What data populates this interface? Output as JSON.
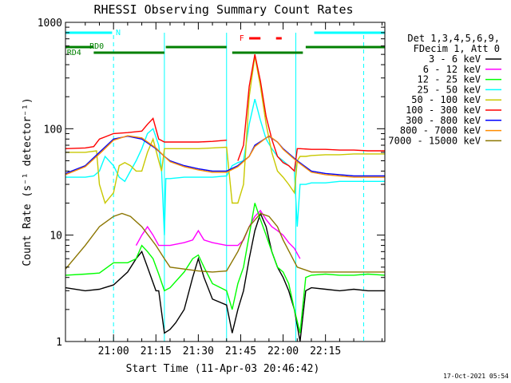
{
  "chart_data": {
    "type": "line",
    "title": "RHESSI Observing Summary Count Rates",
    "xlabel": "Start Time (11-Apr-03 20:46:42)",
    "ylabel": "Count Rate (s⁻¹ detector⁻¹)",
    "yscale": "log",
    "ylim": [
      1,
      1000
    ],
    "xlim_minutes": [
      -17,
      96
    ],
    "x_ticks": [
      {
        "label": "21:00",
        "min": 0
      },
      {
        "label": "21:15",
        "min": 15
      },
      {
        "label": "21:30",
        "min": 30
      },
      {
        "label": "21:45",
        "min": 45
      },
      {
        "label": "22:00",
        "min": 60
      },
      {
        "label": "22:15",
        "min": 75
      }
    ],
    "y_ticks": [
      {
        "label": "1",
        "value": 1
      },
      {
        "label": "10",
        "value": 10
      },
      {
        "label": "100",
        "value": 100
      },
      {
        "label": "1000",
        "value": 1000
      }
    ],
    "legend_header": [
      "Det 1,3,4,5,6,9,",
      "FDecim 1, Att 0"
    ],
    "series": [
      {
        "name": "3 - 6 keV",
        "color": "#000000",
        "points": [
          [
            -17,
            3.2
          ],
          [
            -10,
            3.0
          ],
          [
            -5,
            3.1
          ],
          [
            0,
            3.4
          ],
          [
            5,
            4.5
          ],
          [
            8,
            6
          ],
          [
            10,
            7
          ],
          [
            12,
            5
          ],
          [
            15,
            3
          ],
          [
            16,
            3
          ],
          [
            18,
            1.2
          ],
          [
            20,
            1.3
          ],
          [
            22,
            1.5
          ],
          [
            25,
            2
          ],
          [
            28,
            4
          ],
          [
            30,
            6
          ],
          [
            32,
            4
          ],
          [
            35,
            2.5
          ],
          [
            40,
            2.2
          ],
          [
            42,
            1.2
          ],
          [
            44,
            2
          ],
          [
            46,
            3
          ],
          [
            48,
            6
          ],
          [
            50,
            11
          ],
          [
            52,
            16
          ],
          [
            54,
            12
          ],
          [
            56,
            7
          ],
          [
            58,
            5
          ],
          [
            60,
            4
          ],
          [
            62,
            3
          ],
          [
            64,
            2
          ],
          [
            66,
            1
          ],
          [
            68,
            3
          ],
          [
            70,
            3.2
          ],
          [
            75,
            3.1
          ],
          [
            80,
            3.0
          ],
          [
            85,
            3.1
          ],
          [
            90,
            3.0
          ],
          [
            96,
            3.0
          ]
        ]
      },
      {
        "name": "6 - 12 keV",
        "color": "#ff00ff",
        "points": [
          [
            -17,
            null
          ],
          [
            8,
            8
          ],
          [
            10,
            10
          ],
          [
            12,
            12
          ],
          [
            14,
            10
          ],
          [
            16,
            8
          ],
          [
            20,
            8
          ],
          [
            25,
            8.5
          ],
          [
            28,
            9
          ],
          [
            30,
            11
          ],
          [
            32,
            9
          ],
          [
            35,
            8.5
          ],
          [
            40,
            8
          ],
          [
            44,
            8
          ],
          [
            46,
            9
          ],
          [
            48,
            12
          ],
          [
            50,
            15
          ],
          [
            52,
            17
          ],
          [
            54,
            14
          ],
          [
            56,
            12
          ],
          [
            58,
            11
          ],
          [
            60,
            10
          ],
          [
            62,
            8.5
          ],
          [
            64,
            7.5
          ],
          [
            66,
            6
          ],
          [
            68,
            null
          ]
        ]
      },
      {
        "name": "12 - 25 keV",
        "color": "#00ff00",
        "points": [
          [
            -17,
            4.2
          ],
          [
            -10,
            4.3
          ],
          [
            -5,
            4.4
          ],
          [
            0,
            5.5
          ],
          [
            5,
            5.5
          ],
          [
            8,
            6
          ],
          [
            10,
            8
          ],
          [
            12,
            7
          ],
          [
            14,
            6
          ],
          [
            16,
            4.3
          ],
          [
            18,
            3
          ],
          [
            20,
            3.2
          ],
          [
            25,
            4.5
          ],
          [
            28,
            6
          ],
          [
            30,
            6.5
          ],
          [
            32,
            5
          ],
          [
            35,
            3.5
          ],
          [
            40,
            3
          ],
          [
            42,
            2
          ],
          [
            44,
            3.5
          ],
          [
            46,
            5
          ],
          [
            48,
            10
          ],
          [
            50,
            20
          ],
          [
            52,
            14
          ],
          [
            54,
            10
          ],
          [
            56,
            7
          ],
          [
            58,
            5
          ],
          [
            60,
            4.5
          ],
          [
            62,
            3.5
          ],
          [
            64,
            2
          ],
          [
            66,
            1.2
          ],
          [
            68,
            4
          ],
          [
            70,
            4.2
          ],
          [
            75,
            4.3
          ],
          [
            80,
            4.2
          ],
          [
            85,
            4.2
          ],
          [
            90,
            4.3
          ],
          [
            96,
            4.2
          ]
        ]
      },
      {
        "name": "25 - 50 keV",
        "color": "#00ffff",
        "points": [
          [
            -17,
            35
          ],
          [
            -10,
            35
          ],
          [
            -7,
            36
          ],
          [
            -5,
            40
          ],
          [
            -3,
            55
          ],
          [
            0,
            45
          ],
          [
            2,
            35
          ],
          [
            4,
            32
          ],
          [
            6,
            40
          ],
          [
            8,
            50
          ],
          [
            10,
            65
          ],
          [
            12,
            90
          ],
          [
            14,
            100
          ],
          [
            16,
            70
          ],
          [
            17,
            40
          ],
          [
            18,
            10
          ],
          [
            18.5,
            34
          ],
          [
            20,
            34
          ],
          [
            25,
            35
          ],
          [
            30,
            35
          ],
          [
            35,
            35
          ],
          [
            40,
            36
          ],
          [
            42,
            45
          ],
          [
            44,
            48
          ],
          [
            46,
            50
          ],
          [
            48,
            110
          ],
          [
            50,
            190
          ],
          [
            52,
            120
          ],
          [
            54,
            80
          ],
          [
            56,
            65
          ],
          [
            58,
            55
          ],
          [
            60,
            50
          ],
          [
            62,
            45
          ],
          [
            64,
            40
          ],
          [
            65,
            12
          ],
          [
            66,
            30
          ],
          [
            68,
            30
          ],
          [
            70,
            31
          ],
          [
            75,
            31
          ],
          [
            80,
            32
          ],
          [
            85,
            32
          ],
          [
            90,
            32
          ],
          [
            96,
            32
          ]
        ]
      },
      {
        "name": "50 - 100 keV",
        "color": "#c8c800",
        "points": [
          [
            -17,
            60
          ],
          [
            -10,
            60
          ],
          [
            -6,
            62
          ],
          [
            -5,
            30
          ],
          [
            -3,
            20
          ],
          [
            0,
            25
          ],
          [
            2,
            45
          ],
          [
            4,
            48
          ],
          [
            6,
            45
          ],
          [
            8,
            40
          ],
          [
            10,
            40
          ],
          [
            12,
            60
          ],
          [
            14,
            80
          ],
          [
            16,
            50
          ],
          [
            17,
            40
          ],
          [
            18,
            65
          ],
          [
            20,
            65
          ],
          [
            25,
            65
          ],
          [
            30,
            65
          ],
          [
            35,
            66
          ],
          [
            40,
            67
          ],
          [
            42,
            20
          ],
          [
            44,
            20
          ],
          [
            46,
            30
          ],
          [
            48,
            200
          ],
          [
            50,
            480
          ],
          [
            52,
            250
          ],
          [
            54,
            110
          ],
          [
            56,
            60
          ],
          [
            58,
            40
          ],
          [
            60,
            35
          ],
          [
            62,
            30
          ],
          [
            64,
            25
          ],
          [
            65,
            50
          ],
          [
            66,
            55
          ],
          [
            68,
            55
          ],
          [
            70,
            56
          ],
          [
            75,
            57
          ],
          [
            80,
            57
          ],
          [
            85,
            58
          ],
          [
            90,
            58
          ],
          [
            96,
            58
          ]
        ]
      },
      {
        "name": "100 - 300 keV",
        "color": "#ff0000",
        "points": [
          [
            -17,
            65
          ],
          [
            -10,
            66
          ],
          [
            -7,
            68
          ],
          [
            -5,
            80
          ],
          [
            0,
            90
          ],
          [
            5,
            92
          ],
          [
            10,
            95
          ],
          [
            12,
            110
          ],
          [
            14,
            125
          ],
          [
            16,
            80
          ],
          [
            18,
            75
          ],
          [
            20,
            75
          ],
          [
            25,
            75
          ],
          [
            30,
            75
          ],
          [
            35,
            76
          ],
          [
            40,
            78
          ],
          [
            42,
            null
          ],
          [
            44,
            50
          ],
          [
            46,
            70
          ],
          [
            48,
            250
          ],
          [
            50,
            500
          ],
          [
            52,
            280
          ],
          [
            54,
            130
          ],
          [
            56,
            80
          ],
          [
            58,
            55
          ],
          [
            60,
            48
          ],
          [
            62,
            45
          ],
          [
            64,
            40
          ],
          [
            65,
            65
          ],
          [
            66,
            65
          ],
          [
            70,
            64
          ],
          [
            75,
            64
          ],
          [
            80,
            63
          ],
          [
            85,
            63
          ],
          [
            90,
            62
          ],
          [
            96,
            62
          ]
        ]
      },
      {
        "name": "300 - 800 keV",
        "color": "#0000ff",
        "points": [
          [
            -17,
            38
          ],
          [
            -10,
            45
          ],
          [
            -5,
            60
          ],
          [
            0,
            80
          ],
          [
            5,
            85
          ],
          [
            10,
            80
          ],
          [
            15,
            65
          ],
          [
            18,
            55
          ],
          [
            20,
            50
          ],
          [
            25,
            45
          ],
          [
            30,
            42
          ],
          [
            35,
            40
          ],
          [
            40,
            40
          ],
          [
            44,
            45
          ],
          [
            48,
            55
          ],
          [
            50,
            70
          ],
          [
            55,
            85
          ],
          [
            58,
            75
          ],
          [
            60,
            65
          ],
          [
            65,
            50
          ],
          [
            70,
            40
          ],
          [
            75,
            38
          ],
          [
            80,
            37
          ],
          [
            85,
            36
          ],
          [
            90,
            36
          ],
          [
            96,
            36
          ]
        ]
      },
      {
        "name": "800 - 7000 keV",
        "color": "#ff8c00",
        "points": [
          [
            -17,
            37
          ],
          [
            -10,
            44
          ],
          [
            -5,
            58
          ],
          [
            0,
            78
          ],
          [
            5,
            86
          ],
          [
            10,
            82
          ],
          [
            15,
            66
          ],
          [
            18,
            55
          ],
          [
            20,
            49
          ],
          [
            25,
            44
          ],
          [
            30,
            41
          ],
          [
            35,
            39
          ],
          [
            40,
            39
          ],
          [
            44,
            44
          ],
          [
            48,
            55
          ],
          [
            50,
            68
          ],
          [
            55,
            86
          ],
          [
            58,
            75
          ],
          [
            60,
            64
          ],
          [
            65,
            49
          ],
          [
            70,
            39
          ],
          [
            75,
            37
          ],
          [
            80,
            36
          ],
          [
            85,
            35
          ],
          [
            90,
            35
          ],
          [
            96,
            35
          ]
        ]
      },
      {
        "name": "7000 - 15000 keV",
        "color": "#8b7500",
        "points": [
          [
            -17,
            4.8
          ],
          [
            -10,
            8
          ],
          [
            -5,
            12
          ],
          [
            0,
            15
          ],
          [
            3,
            16
          ],
          [
            6,
            15
          ],
          [
            10,
            12
          ],
          [
            15,
            8
          ],
          [
            18,
            6
          ],
          [
            20,
            5
          ],
          [
            25,
            4.8
          ],
          [
            30,
            4.6
          ],
          [
            35,
            4.5
          ],
          [
            40,
            4.6
          ],
          [
            44,
            7
          ],
          [
            48,
            12
          ],
          [
            52,
            16
          ],
          [
            55,
            15
          ],
          [
            58,
            12
          ],
          [
            60,
            9
          ],
          [
            65,
            5
          ],
          [
            70,
            4.5
          ],
          [
            75,
            4.5
          ],
          [
            80,
            4.5
          ],
          [
            85,
            4.5
          ],
          [
            90,
            4.5
          ],
          [
            96,
            4.5
          ]
        ]
      }
    ],
    "annotations": {
      "night_label": "N",
      "saa_label": "RD0",
      "rd4_label": "RD4",
      "flare_label": "F"
    }
  },
  "footer": {
    "timestamp": "17-Oct-2021 05:54"
  }
}
